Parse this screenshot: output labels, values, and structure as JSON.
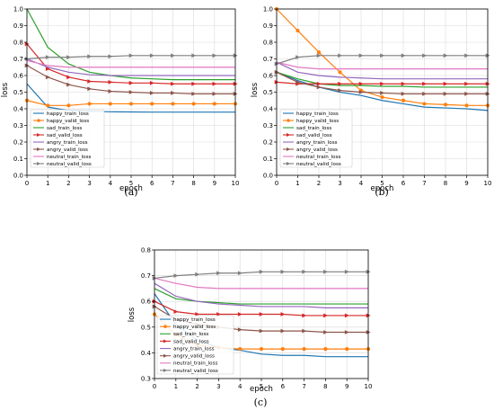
{
  "chart_data": [
    {
      "type": "line",
      "caption": "(a)",
      "xlabel": "epoch",
      "ylabel": "loss",
      "xlim": [
        0,
        10
      ],
      "ylim": [
        0.0,
        1.0
      ],
      "x": [
        0,
        1,
        2,
        3,
        4,
        5,
        6,
        7,
        8,
        9,
        10
      ],
      "xticks": [
        "0",
        "1",
        "2",
        "3",
        "4",
        "5",
        "6",
        "7",
        "8",
        "9",
        "10"
      ],
      "yticks": [
        "0.0",
        "0.1",
        "0.2",
        "0.3",
        "0.4",
        "0.5",
        "0.6",
        "0.7",
        "0.8",
        "0.9",
        "1.0"
      ],
      "grid": true,
      "legend": "bottom-left",
      "series": [
        {
          "name": "happy_train_loss",
          "color": "#1f77b4",
          "marker": "none",
          "values": [
            0.55,
            0.41,
            0.39,
            0.385,
            0.382,
            0.381,
            0.38,
            0.38,
            0.38,
            0.38,
            0.38
          ]
        },
        {
          "name": "happy_valid_loss",
          "color": "#ff7f0e",
          "marker": "circle",
          "values": [
            0.45,
            0.42,
            0.42,
            0.43,
            0.43,
            0.43,
            0.43,
            0.43,
            0.43,
            0.43,
            0.43
          ]
        },
        {
          "name": "sad_train_loss",
          "color": "#2ca02c",
          "marker": "none",
          "values": [
            1.0,
            0.77,
            0.67,
            0.62,
            0.6,
            0.585,
            0.58,
            0.575,
            0.575,
            0.575,
            0.575
          ]
        },
        {
          "name": "sad_valid_loss",
          "color": "#d62728",
          "marker": "triangle-right",
          "values": [
            0.79,
            0.64,
            0.59,
            0.565,
            0.56,
            0.555,
            0.555,
            0.55,
            0.55,
            0.55,
            0.55
          ]
        },
        {
          "name": "angry_train_loss",
          "color": "#9467bd",
          "marker": "none",
          "values": [
            0.7,
            0.65,
            0.62,
            0.605,
            0.6,
            0.6,
            0.6,
            0.6,
            0.6,
            0.6,
            0.6
          ]
        },
        {
          "name": "angry_valid_loss",
          "color": "#8c564b",
          "marker": "triangle-right",
          "values": [
            0.66,
            0.59,
            0.545,
            0.52,
            0.505,
            0.5,
            0.495,
            0.495,
            0.49,
            0.49,
            0.49
          ]
        },
        {
          "name": "neutral_train_loss",
          "color": "#e377c2",
          "marker": "none",
          "values": [
            0.69,
            0.66,
            0.65,
            0.65,
            0.65,
            0.65,
            0.65,
            0.65,
            0.65,
            0.65,
            0.65
          ]
        },
        {
          "name": "neutral_valid_loss",
          "color": "#7f7f7f",
          "marker": "triangle-right",
          "values": [
            0.7,
            0.71,
            0.71,
            0.715,
            0.715,
            0.72,
            0.72,
            0.72,
            0.72,
            0.72,
            0.72
          ]
        }
      ]
    },
    {
      "type": "line",
      "caption": "(b)",
      "xlabel": "epoch",
      "ylabel": "loss",
      "xlim": [
        0,
        10
      ],
      "ylim": [
        0.0,
        1.0
      ],
      "x": [
        0,
        1,
        2,
        3,
        4,
        5,
        6,
        7,
        8,
        9,
        10
      ],
      "xticks": [
        "0",
        "1",
        "2",
        "3",
        "4",
        "5",
        "6",
        "7",
        "8",
        "9",
        "10"
      ],
      "yticks": [
        "0.0",
        "0.1",
        "0.2",
        "0.3",
        "0.4",
        "0.5",
        "0.6",
        "0.7",
        "0.8",
        "0.9",
        "1.0"
      ],
      "grid": true,
      "legend": "bottom-left",
      "series": [
        {
          "name": "happy_train_loss",
          "color": "#1f77b4",
          "marker": "none",
          "values": [
            0.62,
            0.57,
            0.53,
            0.5,
            0.48,
            0.45,
            0.43,
            0.41,
            0.405,
            0.4,
            0.39
          ]
        },
        {
          "name": "happy_valid_loss",
          "color": "#ff7f0e",
          "marker": "circle",
          "values": [
            1.0,
            0.87,
            0.74,
            0.62,
            0.51,
            0.47,
            0.45,
            0.43,
            0.425,
            0.42,
            0.42
          ]
        },
        {
          "name": "sad_train_loss",
          "color": "#2ca02c",
          "marker": "none",
          "values": [
            0.62,
            0.58,
            0.55,
            0.54,
            0.54,
            0.535,
            0.535,
            0.53,
            0.53,
            0.53,
            0.53
          ]
        },
        {
          "name": "sad_valid_loss",
          "color": "#d62728",
          "marker": "triangle-right",
          "values": [
            0.56,
            0.55,
            0.55,
            0.55,
            0.55,
            0.55,
            0.55,
            0.55,
            0.55,
            0.55,
            0.55
          ]
        },
        {
          "name": "angry_train_loss",
          "color": "#9467bd",
          "marker": "none",
          "values": [
            0.68,
            0.62,
            0.6,
            0.59,
            0.585,
            0.58,
            0.58,
            0.58,
            0.58,
            0.58,
            0.58
          ]
        },
        {
          "name": "angry_valid_loss",
          "color": "#8c564b",
          "marker": "triangle-right",
          "values": [
            0.62,
            0.56,
            0.53,
            0.51,
            0.5,
            0.495,
            0.49,
            0.49,
            0.49,
            0.49,
            0.49
          ]
        },
        {
          "name": "neutral_train_loss",
          "color": "#e377c2",
          "marker": "none",
          "values": [
            0.68,
            0.65,
            0.64,
            0.64,
            0.64,
            0.64,
            0.64,
            0.64,
            0.64,
            0.64,
            0.64
          ]
        },
        {
          "name": "neutral_valid_loss",
          "color": "#7f7f7f",
          "marker": "triangle-right",
          "values": [
            0.67,
            0.71,
            0.72,
            0.72,
            0.72,
            0.72,
            0.72,
            0.72,
            0.72,
            0.72,
            0.72
          ]
        }
      ]
    },
    {
      "type": "line",
      "caption": "(c)",
      "xlabel": "epoch",
      "ylabel": "loss",
      "xlim": [
        0,
        10
      ],
      "ylim": [
        0.3,
        0.8
      ],
      "x": [
        0,
        1,
        2,
        3,
        4,
        5,
        6,
        7,
        8,
        9,
        10
      ],
      "xticks": [
        "0",
        "1",
        "2",
        "3",
        "4",
        "5",
        "6",
        "7",
        "8",
        "9",
        "10"
      ],
      "yticks": [
        "0.3",
        "0.4",
        "0.5",
        "0.6",
        "0.7",
        "0.8"
      ],
      "grid": true,
      "legend": "bottom-left",
      "series": [
        {
          "name": "happy_train_loss",
          "color": "#1f77b4",
          "marker": "none",
          "values": [
            0.63,
            0.51,
            0.45,
            0.42,
            0.41,
            0.395,
            0.39,
            0.39,
            0.385,
            0.385,
            0.385
          ]
        },
        {
          "name": "happy_valid_loss",
          "color": "#ff7f0e",
          "marker": "circle",
          "values": [
            0.55,
            0.47,
            0.43,
            0.42,
            0.415,
            0.415,
            0.415,
            0.415,
            0.415,
            0.415,
            0.415
          ]
        },
        {
          "name": "sad_train_loss",
          "color": "#2ca02c",
          "marker": "none",
          "values": [
            0.65,
            0.61,
            0.6,
            0.595,
            0.59,
            0.59,
            0.59,
            0.59,
            0.59,
            0.59,
            0.59
          ]
        },
        {
          "name": "sad_valid_loss",
          "color": "#d62728",
          "marker": "triangle-right",
          "values": [
            0.6,
            0.56,
            0.55,
            0.55,
            0.55,
            0.55,
            0.55,
            0.545,
            0.545,
            0.545,
            0.545
          ]
        },
        {
          "name": "angry_train_loss",
          "color": "#9467bd",
          "marker": "none",
          "values": [
            0.67,
            0.62,
            0.6,
            0.59,
            0.585,
            0.58,
            0.58,
            0.58,
            0.575,
            0.575,
            0.575
          ]
        },
        {
          "name": "angry_valid_loss",
          "color": "#8c564b",
          "marker": "triangle-right",
          "values": [
            0.58,
            0.53,
            0.51,
            0.5,
            0.49,
            0.485,
            0.485,
            0.485,
            0.48,
            0.48,
            0.48
          ]
        },
        {
          "name": "neutral_train_loss",
          "color": "#e377c2",
          "marker": "none",
          "values": [
            0.69,
            0.67,
            0.655,
            0.65,
            0.65,
            0.65,
            0.65,
            0.65,
            0.65,
            0.65,
            0.65
          ]
        },
        {
          "name": "neutral_valid_loss",
          "color": "#7f7f7f",
          "marker": "triangle-right",
          "values": [
            0.69,
            0.7,
            0.705,
            0.71,
            0.71,
            0.715,
            0.715,
            0.715,
            0.715,
            0.715,
            0.715
          ]
        }
      ]
    }
  ]
}
